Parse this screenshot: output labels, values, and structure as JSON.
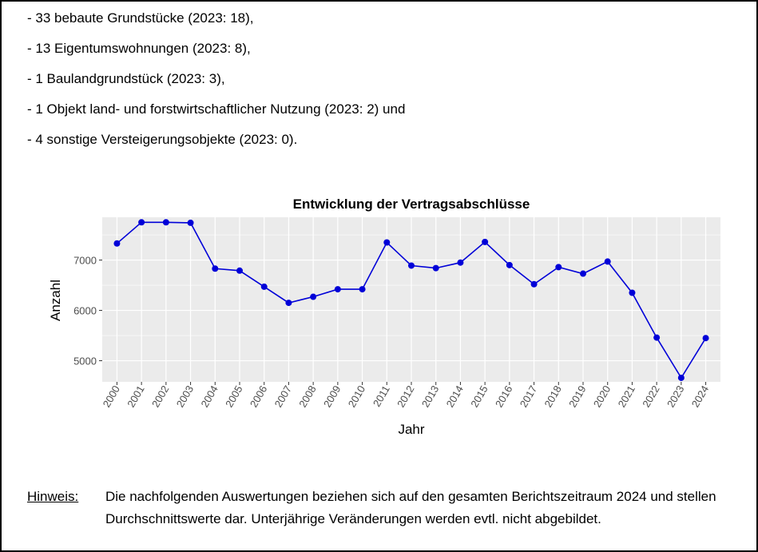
{
  "bullets": [
    "- 33 bebaute Grundstücke (2023: 18),",
    "- 13 Eigentumswohnungen (2023: 8),",
    "- 1 Baulandgrundstück (2023: 3),",
    "- 1 Objekt land- und forstwirtschaftlicher Nutzung (2023: 2) und",
    "- 4 sonstige Versteigerungsobjekte (2023: 0)."
  ],
  "chart_data": {
    "type": "line",
    "title": "Entwicklung der Vertragsabschlüsse",
    "xlabel": "Jahr",
    "ylabel": "Anzahl",
    "x": [
      "2000",
      "2001",
      "2002",
      "2003",
      "2004",
      "2005",
      "2006",
      "2007",
      "2008",
      "2009",
      "2010",
      "2011",
      "2012",
      "2013",
      "2014",
      "2015",
      "2016",
      "2017",
      "2018",
      "2019",
      "2020",
      "2021",
      "2022",
      "2023",
      "2024"
    ],
    "values": [
      7330,
      7750,
      7750,
      7740,
      6830,
      6790,
      6470,
      6150,
      6270,
      6420,
      6420,
      7350,
      6890,
      6840,
      6950,
      7360,
      6900,
      6520,
      6860,
      6730,
      6970,
      6350,
      5460,
      4660,
      5450
    ],
    "yticks": [
      5000,
      6000,
      7000
    ],
    "ylim": [
      4580,
      7850
    ],
    "grid": true,
    "legend": "none",
    "colors": {
      "line": "#0000d8",
      "panel": "#ebebeb",
      "grid": "#ffffff"
    }
  },
  "note": {
    "label": "Hinweis:",
    "text": "Die nachfolgenden Auswertungen beziehen sich auf den gesamten Berichtszeitraum 2024 und stellen Durchschnittswerte dar. Unterjährige Veränderungen werden evtl. nicht abgebildet."
  }
}
